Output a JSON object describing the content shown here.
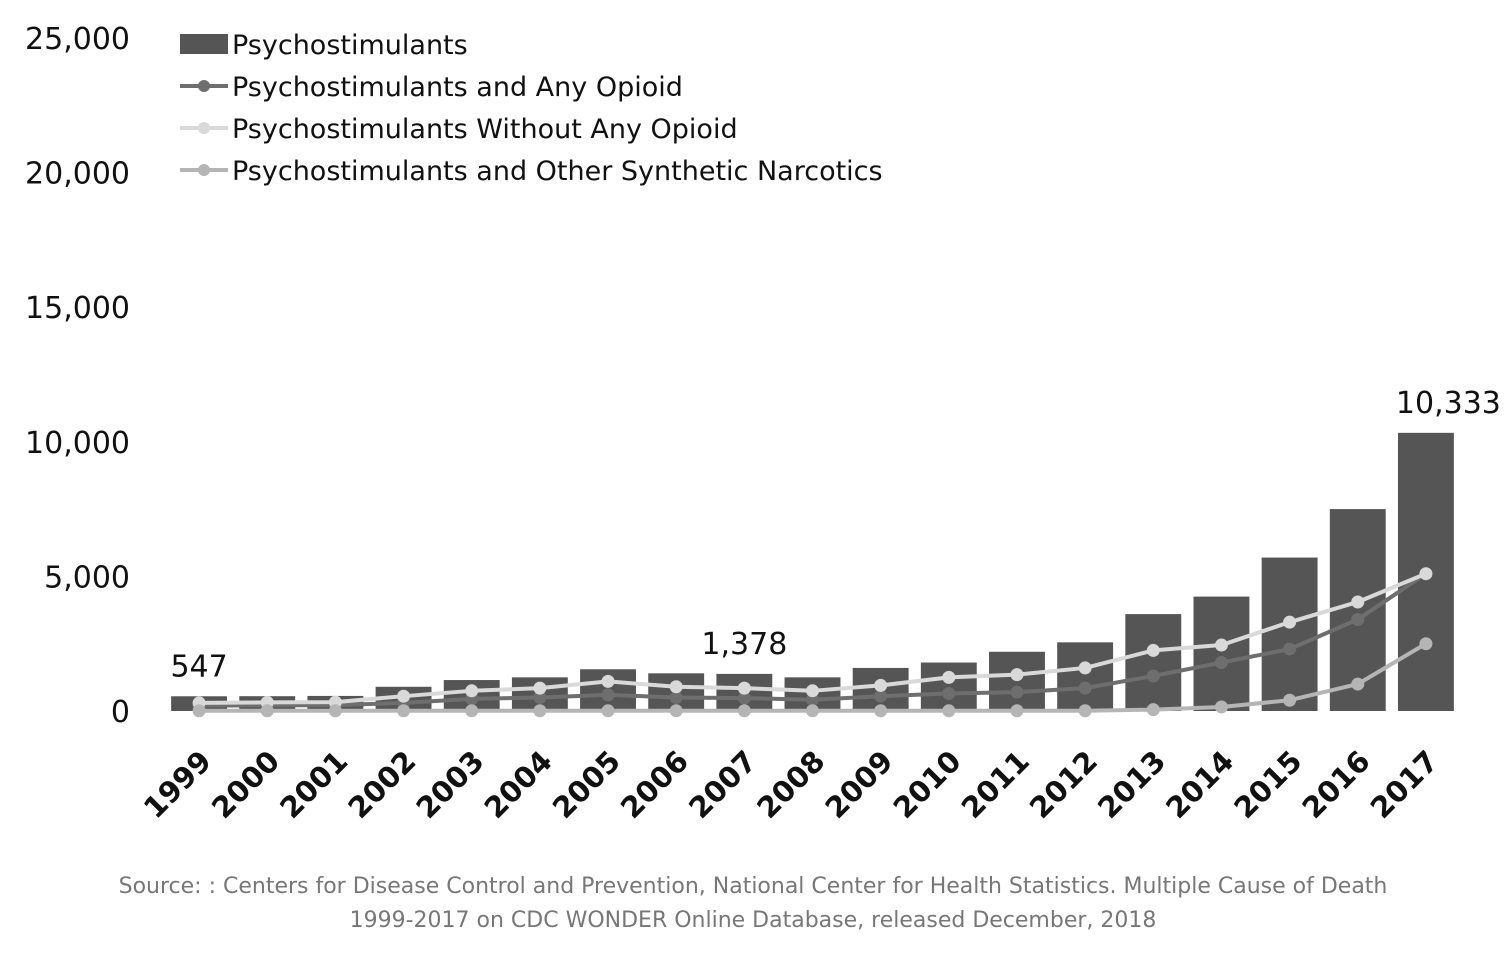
{
  "chart_data": {
    "type": "bar",
    "categories": [
      "1999",
      "2000",
      "2001",
      "2002",
      "2003",
      "2004",
      "2005",
      "2006",
      "2007",
      "2008",
      "2009",
      "2010",
      "2011",
      "2012",
      "2013",
      "2014",
      "2015",
      "2016",
      "2017"
    ],
    "ylim": [
      0,
      25000
    ],
    "yticks": [
      0,
      5000,
      10000,
      15000,
      20000,
      25000
    ],
    "ytick_labels": [
      "0",
      "5,000",
      "10,000",
      "15,000",
      "20,000",
      "25,000"
    ],
    "series": [
      {
        "name": "Psychostimulants",
        "kind": "bar",
        "color": "#555555",
        "values": [
          547,
          550,
          560,
          900,
          1150,
          1250,
          1550,
          1400,
          1378,
          1250,
          1600,
          1800,
          2200,
          2550,
          3600,
          4250,
          5700,
          7500,
          10333
        ]
      },
      {
        "name": "Psychostimulants and Any Opioid",
        "kind": "line",
        "color": "#6e6e6e",
        "values": [
          200,
          210,
          220,
          300,
          450,
          500,
          600,
          500,
          480,
          420,
          550,
          650,
          700,
          850,
          1300,
          1800,
          2300,
          3400,
          5100
        ]
      },
      {
        "name": "Psychostimulants Without Any Opioid",
        "kind": "line",
        "color": "#d9d9d9",
        "values": [
          300,
          320,
          330,
          550,
          750,
          850,
          1100,
          900,
          850,
          750,
          950,
          1250,
          1350,
          1600,
          2250,
          2450,
          3300,
          4050,
          5100
        ]
      },
      {
        "name": "Psychostimulants and Other Synthetic Narcotics",
        "kind": "line",
        "color": "#b5b5b5",
        "values": [
          10,
          10,
          10,
          10,
          10,
          10,
          10,
          10,
          10,
          10,
          10,
          10,
          10,
          10,
          50,
          150,
          400,
          1000,
          2500
        ]
      }
    ],
    "data_labels": [
      {
        "category": "1999",
        "text": "547"
      },
      {
        "category": "2007",
        "text": "1,378"
      },
      {
        "category": "2017",
        "text": "10,333"
      }
    ],
    "legend_position": "top-left",
    "grid": false
  },
  "source": {
    "line1": "Source: : Centers for Disease Control and Prevention, National Center for Health Statistics. Multiple Cause of Death",
    "line2": "1999-2017 on CDC WONDER Online Database, released December, 2018"
  }
}
